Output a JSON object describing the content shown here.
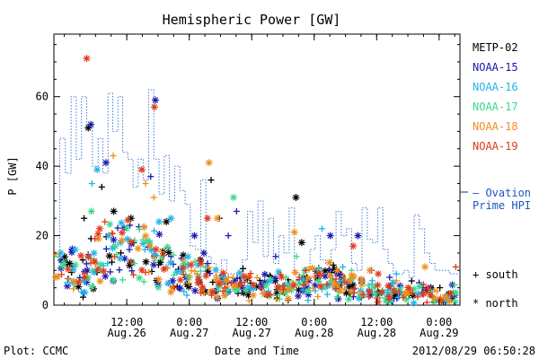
{
  "chart_data": {
    "type": "scatter",
    "title": "Hemispheric Power [GW]",
    "ylabel": "P [GW]",
    "xlabel": "Date and Time",
    "ylim": [
      0,
      78
    ],
    "yticks": [
      0,
      20,
      40,
      60
    ],
    "xlim": [
      0,
      78
    ],
    "x_units": "hours since 2012-08-25 22:00 UT",
    "xticks": [
      {
        "x": 14,
        "time": "12:00",
        "date": "Aug.26"
      },
      {
        "x": 26,
        "time": "0:00",
        "date": "Aug.27"
      },
      {
        "x": 38,
        "time": "12:00",
        "date": "Aug.27"
      },
      {
        "x": 50,
        "time": "0:00",
        "date": "Aug.28"
      },
      {
        "x": 62,
        "time": "12:00",
        "date": "Aug.28"
      },
      {
        "x": 74,
        "time": "0:00",
        "date": "Aug.29"
      }
    ],
    "grid": false,
    "legend_position": "right",
    "series": [
      {
        "name": "METP-02",
        "color": "#000000",
        "seed": 11,
        "spikes": [
          [
            5.8,
            25,
            "+"
          ],
          [
            6.6,
            51,
            "*"
          ],
          [
            9.2,
            34,
            "+"
          ],
          [
            11.5,
            27,
            "*"
          ],
          [
            14.8,
            25,
            "*"
          ],
          [
            21.6,
            24,
            "*"
          ],
          [
            30.2,
            36,
            "+"
          ],
          [
            31.8,
            25,
            "+"
          ],
          [
            46.5,
            31,
            "*"
          ],
          [
            47.6,
            18,
            "*"
          ],
          [
            42.5,
            7,
            "*"
          ],
          [
            48.6,
            8,
            "+"
          ]
        ]
      },
      {
        "name": "NOAA-15",
        "color": "#1a1ab0",
        "seed": 23,
        "spikes": [
          [
            7.1,
            52,
            "*"
          ],
          [
            10.0,
            41,
            "*"
          ],
          [
            19.5,
            59,
            "*"
          ],
          [
            18.6,
            37,
            "+"
          ],
          [
            14.5,
            16,
            "+"
          ],
          [
            22.5,
            14,
            "+"
          ],
          [
            27.0,
            20,
            "*"
          ],
          [
            28.8,
            15,
            "*"
          ],
          [
            35.1,
            27,
            "+"
          ],
          [
            33.5,
            20,
            "+"
          ],
          [
            29.5,
            12,
            "+"
          ],
          [
            42.6,
            14,
            "+"
          ],
          [
            53.1,
            20,
            "*"
          ],
          [
            58.4,
            20,
            "*"
          ],
          [
            61.0,
            10,
            "+"
          ],
          [
            64.5,
            8,
            "+"
          ]
        ]
      },
      {
        "name": "NOAA-16",
        "color": "#21b4e8",
        "seed": 37,
        "spikes": [
          [
            7.3,
            35,
            "+"
          ],
          [
            8.3,
            39,
            "*"
          ],
          [
            10.5,
            20,
            "*"
          ],
          [
            12.8,
            18,
            "*"
          ],
          [
            17.5,
            16,
            "+"
          ],
          [
            20.2,
            24,
            "*"
          ],
          [
            22.5,
            25,
            "*"
          ],
          [
            51.5,
            22,
            "+"
          ],
          [
            55.5,
            11,
            "+"
          ],
          [
            65.8,
            9,
            "+"
          ]
        ]
      },
      {
        "name": "NOAA-17",
        "color": "#3dd88b",
        "seed": 53,
        "spikes": [
          [
            7.2,
            27,
            "*"
          ],
          [
            34.5,
            31,
            "*"
          ],
          [
            11.8,
            17,
            "*"
          ],
          [
            15.5,
            12,
            "+"
          ],
          [
            46.6,
            14,
            "+"
          ],
          [
            48.2,
            10,
            "*"
          ],
          [
            57.2,
            10,
            "+"
          ]
        ]
      },
      {
        "name": "NOAA-18",
        "color": "#ef8e1b",
        "seed": 71,
        "spikes": [
          [
            11.4,
            43,
            "+"
          ],
          [
            17.6,
            35,
            "+"
          ],
          [
            19.2,
            31,
            "+"
          ],
          [
            29.8,
            41,
            "*"
          ],
          [
            31.4,
            25,
            "*"
          ],
          [
            18.4,
            17,
            "*"
          ],
          [
            46.2,
            21,
            "*"
          ],
          [
            60.7,
            10,
            "*"
          ],
          [
            71.3,
            11,
            "*"
          ],
          [
            65.8,
            7,
            "+"
          ]
        ]
      },
      {
        "name": "NOAA-19",
        "color": "#e03a1a",
        "seed": 89,
        "spikes": [
          [
            6.3,
            71,
            "*"
          ],
          [
            19.3,
            57,
            "*"
          ],
          [
            16.9,
            39,
            "*"
          ],
          [
            8.8,
            22,
            "*"
          ],
          [
            9.8,
            24,
            "+"
          ],
          [
            29.5,
            25,
            "*"
          ],
          [
            37.5,
            8,
            "+"
          ],
          [
            57.5,
            17,
            "*"
          ],
          [
            62.3,
            9,
            "*"
          ],
          [
            71.0,
            6,
            "+"
          ],
          [
            77.2,
            11,
            "+"
          ]
        ]
      }
    ],
    "ovation": {
      "name": "— Ovation Prime HPI",
      "color": "#3c78d8",
      "steps": [
        [
          0,
          14
        ],
        [
          1.1,
          48
        ],
        [
          2.2,
          38
        ],
        [
          3.3,
          60
        ],
        [
          4.3,
          42
        ],
        [
          5.3,
          60
        ],
        [
          6.3,
          52
        ],
        [
          7.4,
          40
        ],
        [
          8.5,
          48
        ],
        [
          9.4,
          38
        ],
        [
          10.4,
          61
        ],
        [
          11.3,
          50
        ],
        [
          12.3,
          60
        ],
        [
          13.2,
          44
        ],
        [
          14.2,
          42
        ],
        [
          15.2,
          34
        ],
        [
          16.2,
          42
        ],
        [
          17.2,
          36
        ],
        [
          18.2,
          62
        ],
        [
          19.2,
          42
        ],
        [
          20.2,
          32
        ],
        [
          21.2,
          43
        ],
        [
          22.2,
          30
        ],
        [
          23.2,
          40
        ],
        [
          24.2,
          33
        ],
        [
          25.2,
          29
        ],
        [
          26.2,
          17
        ],
        [
          27.2,
          16
        ],
        [
          28.2,
          36
        ],
        [
          29.2,
          14
        ],
        [
          30.2,
          12
        ],
        [
          31.2,
          8
        ],
        [
          32.2,
          13
        ],
        [
          33.2,
          9
        ],
        [
          34.2,
          9
        ],
        [
          35.2,
          8
        ],
        [
          36.2,
          13
        ],
        [
          37.2,
          27
        ],
        [
          38.2,
          18
        ],
        [
          39.2,
          30
        ],
        [
          40.2,
          14
        ],
        [
          41.2,
          25
        ],
        [
          42.2,
          12
        ],
        [
          43.2,
          20
        ],
        [
          44.2,
          15
        ],
        [
          45.2,
          28
        ],
        [
          46.2,
          9
        ],
        [
          47.2,
          6
        ],
        [
          48.2,
          11
        ],
        [
          49.2,
          16
        ],
        [
          50.2,
          20
        ],
        [
          51.2,
          13
        ],
        [
          52.2,
          12
        ],
        [
          53.2,
          16
        ],
        [
          54.2,
          27
        ],
        [
          55.2,
          20
        ],
        [
          56.2,
          22
        ],
        [
          57.2,
          12
        ],
        [
          58.2,
          10
        ],
        [
          59.2,
          28
        ],
        [
          60.2,
          19
        ],
        [
          61.2,
          18
        ],
        [
          62.2,
          28
        ],
        [
          63.2,
          16
        ],
        [
          64.2,
          12
        ],
        [
          65.2,
          9
        ],
        [
          66.2,
          9
        ],
        [
          67.2,
          10
        ],
        [
          68.2,
          8
        ],
        [
          69.2,
          26
        ],
        [
          70.2,
          22
        ],
        [
          71.2,
          15
        ],
        [
          72.2,
          12
        ],
        [
          73.2,
          10
        ],
        [
          74.2,
          10
        ],
        [
          76.0,
          9
        ],
        [
          78,
          9
        ]
      ]
    },
    "symbol_key": {
      "south": "+ south",
      "north": "* north"
    }
  },
  "footer": {
    "plot_credit": "Plot: CCMC",
    "timestamp": "2012/08/29 06:50:28"
  }
}
